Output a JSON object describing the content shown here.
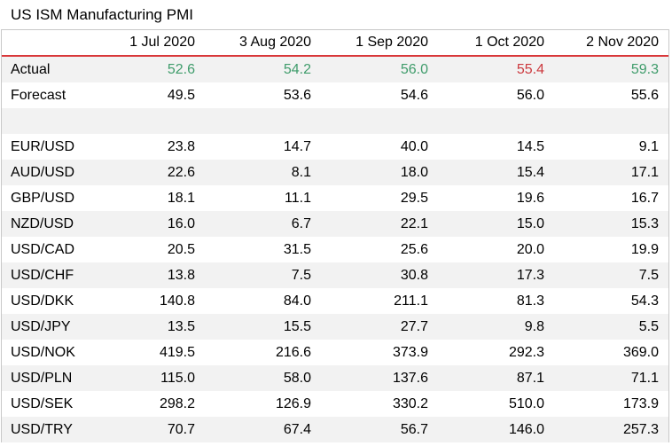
{
  "title": "US ISM Manufacturing PMI",
  "colors": {
    "header_rule": "#d9383a",
    "positive": "#3f9c6b",
    "negative": "#cc3a3f",
    "stripe": "#f2f2f2"
  },
  "columns": [
    "1 Jul 2020",
    "3 Aug 2020",
    "1 Sep 2020",
    "1 Oct 2020",
    "2 Nov 2020"
  ],
  "actual": {
    "label": "Actual",
    "values": [
      "52.6",
      "54.2",
      "56.0",
      "55.4",
      "59.3"
    ],
    "tones": [
      "pos",
      "pos",
      "pos",
      "neg",
      "pos"
    ]
  },
  "forecast": {
    "label": "Forecast",
    "values": [
      "49.5",
      "53.6",
      "54.6",
      "56.0",
      "55.6"
    ]
  },
  "pairs": [
    {
      "label": "EUR/USD",
      "values": [
        "23.8",
        "14.7",
        "40.0",
        "14.5",
        "9.1"
      ]
    },
    {
      "label": "AUD/USD",
      "values": [
        "22.6",
        "8.1",
        "18.0",
        "15.4",
        "17.1"
      ]
    },
    {
      "label": "GBP/USD",
      "values": [
        "18.1",
        "11.1",
        "29.5",
        "19.6",
        "16.7"
      ]
    },
    {
      "label": "NZD/USD",
      "values": [
        "16.0",
        "6.7",
        "22.1",
        "15.0",
        "15.3"
      ]
    },
    {
      "label": "USD/CAD",
      "values": [
        "20.5",
        "31.5",
        "25.6",
        "20.0",
        "19.9"
      ]
    },
    {
      "label": "USD/CHF",
      "values": [
        "13.8",
        "7.5",
        "30.8",
        "17.3",
        "7.5"
      ]
    },
    {
      "label": "USD/DKK",
      "values": [
        "140.8",
        "84.0",
        "211.1",
        "81.3",
        "54.3"
      ]
    },
    {
      "label": "USD/JPY",
      "values": [
        "13.5",
        "15.5",
        "27.7",
        "9.8",
        "5.5"
      ]
    },
    {
      "label": "USD/NOK",
      "values": [
        "419.5",
        "216.6",
        "373.9",
        "292.3",
        "369.0"
      ]
    },
    {
      "label": "USD/PLN",
      "values": [
        "115.0",
        "58.0",
        "137.6",
        "87.1",
        "71.1"
      ]
    },
    {
      "label": "USD/SEK",
      "values": [
        "298.2",
        "126.9",
        "330.2",
        "510.0",
        "173.9"
      ]
    },
    {
      "label": "USD/TRY",
      "values": [
        "70.7",
        "67.4",
        "56.7",
        "146.0",
        "257.3"
      ]
    }
  ]
}
